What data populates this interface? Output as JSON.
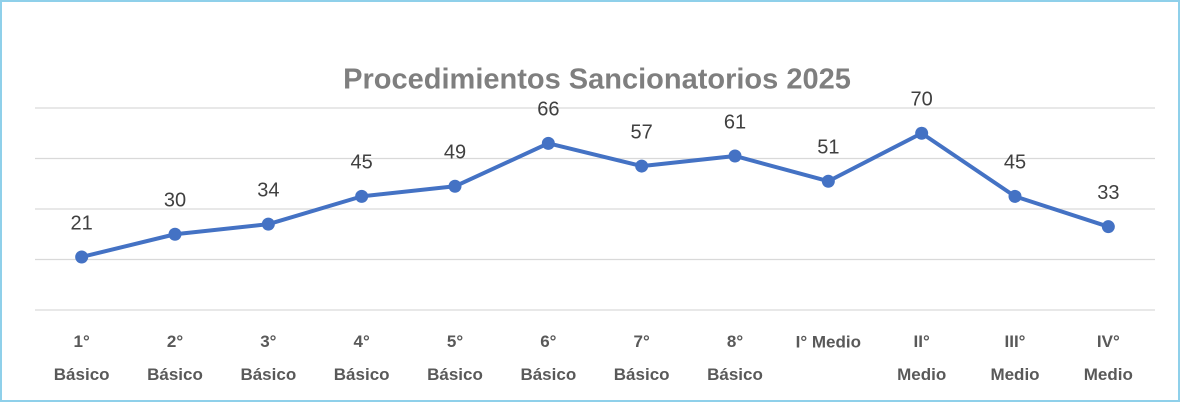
{
  "chart_data": {
    "type": "line",
    "title": "Procedimientos Sancionatorios 2025",
    "categories": [
      "1° Básico",
      "2° Básico",
      "3° Básico",
      "4° Básico",
      "5° Básico",
      "6° Básico",
      "7° Básico",
      "8° Básico",
      "I° Medio",
      "II° Medio",
      "III° Medio",
      "IV° Medio"
    ],
    "values": [
      21,
      30,
      34,
      45,
      49,
      66,
      57,
      61,
      51,
      70,
      45,
      33
    ],
    "color": "#4472c4",
    "ylim": [
      0,
      80
    ],
    "yticks": [
      0,
      20,
      40,
      60,
      80
    ],
    "grid": true
  }
}
